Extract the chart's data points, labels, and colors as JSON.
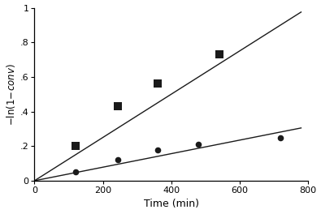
{
  "sq_data_x": [
    120,
    245,
    360,
    540
  ],
  "sq_data_y": [
    0.2,
    0.43,
    0.56,
    0.73
  ],
  "di_data_x": [
    120,
    245,
    360,
    480,
    720
  ],
  "di_data_y": [
    0.05,
    0.12,
    0.18,
    0.21,
    0.25
  ],
  "line1_x": [
    0,
    780
  ],
  "line1_y": [
    0,
    0.975
  ],
  "line2_x": [
    0,
    780
  ],
  "line2_y": [
    0,
    0.305
  ],
  "xlabel": "Time (min)",
  "ylabel": "-ln(1-αconv)",
  "xlim": [
    0,
    800
  ],
  "ylim": [
    0,
    1.0
  ],
  "xticks": [
    0,
    200,
    400,
    600,
    800
  ],
  "yticks": [
    0,
    0.2,
    0.4,
    0.6,
    0.8,
    1.0
  ],
  "ytick_labels": [
    "0",
    ".2",
    ".4",
    ".6",
    ".8",
    "1"
  ],
  "background_color": "#ffffff",
  "line_color": "#1a1a1a",
  "marker_color": "#1a1a1a"
}
